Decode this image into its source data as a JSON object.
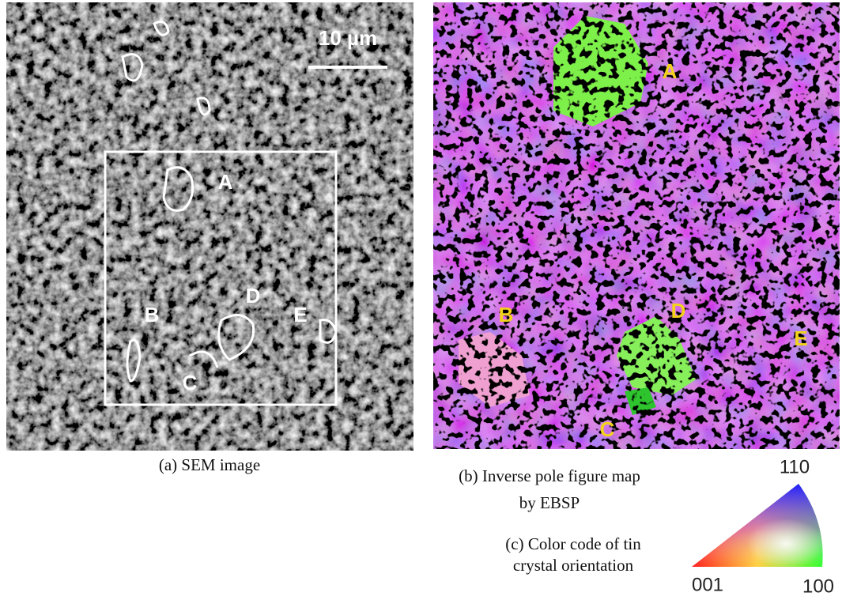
{
  "panels": [
    {
      "caption": "(a) SEM image",
      "scale_bar": "10 µm",
      "labels": [
        "A",
        "B",
        "C",
        "D",
        "E"
      ]
    },
    {
      "caption_lines": [
        "(b) Inverse pole figure map",
        "by EBSP"
      ],
      "labels": [
        "A",
        "B",
        "C",
        "D",
        "E"
      ]
    },
    {
      "caption_lines": [
        "(c) Color code of tin",
        "crystal orientation"
      ],
      "corners": [
        "110",
        "001",
        "100"
      ]
    }
  ]
}
